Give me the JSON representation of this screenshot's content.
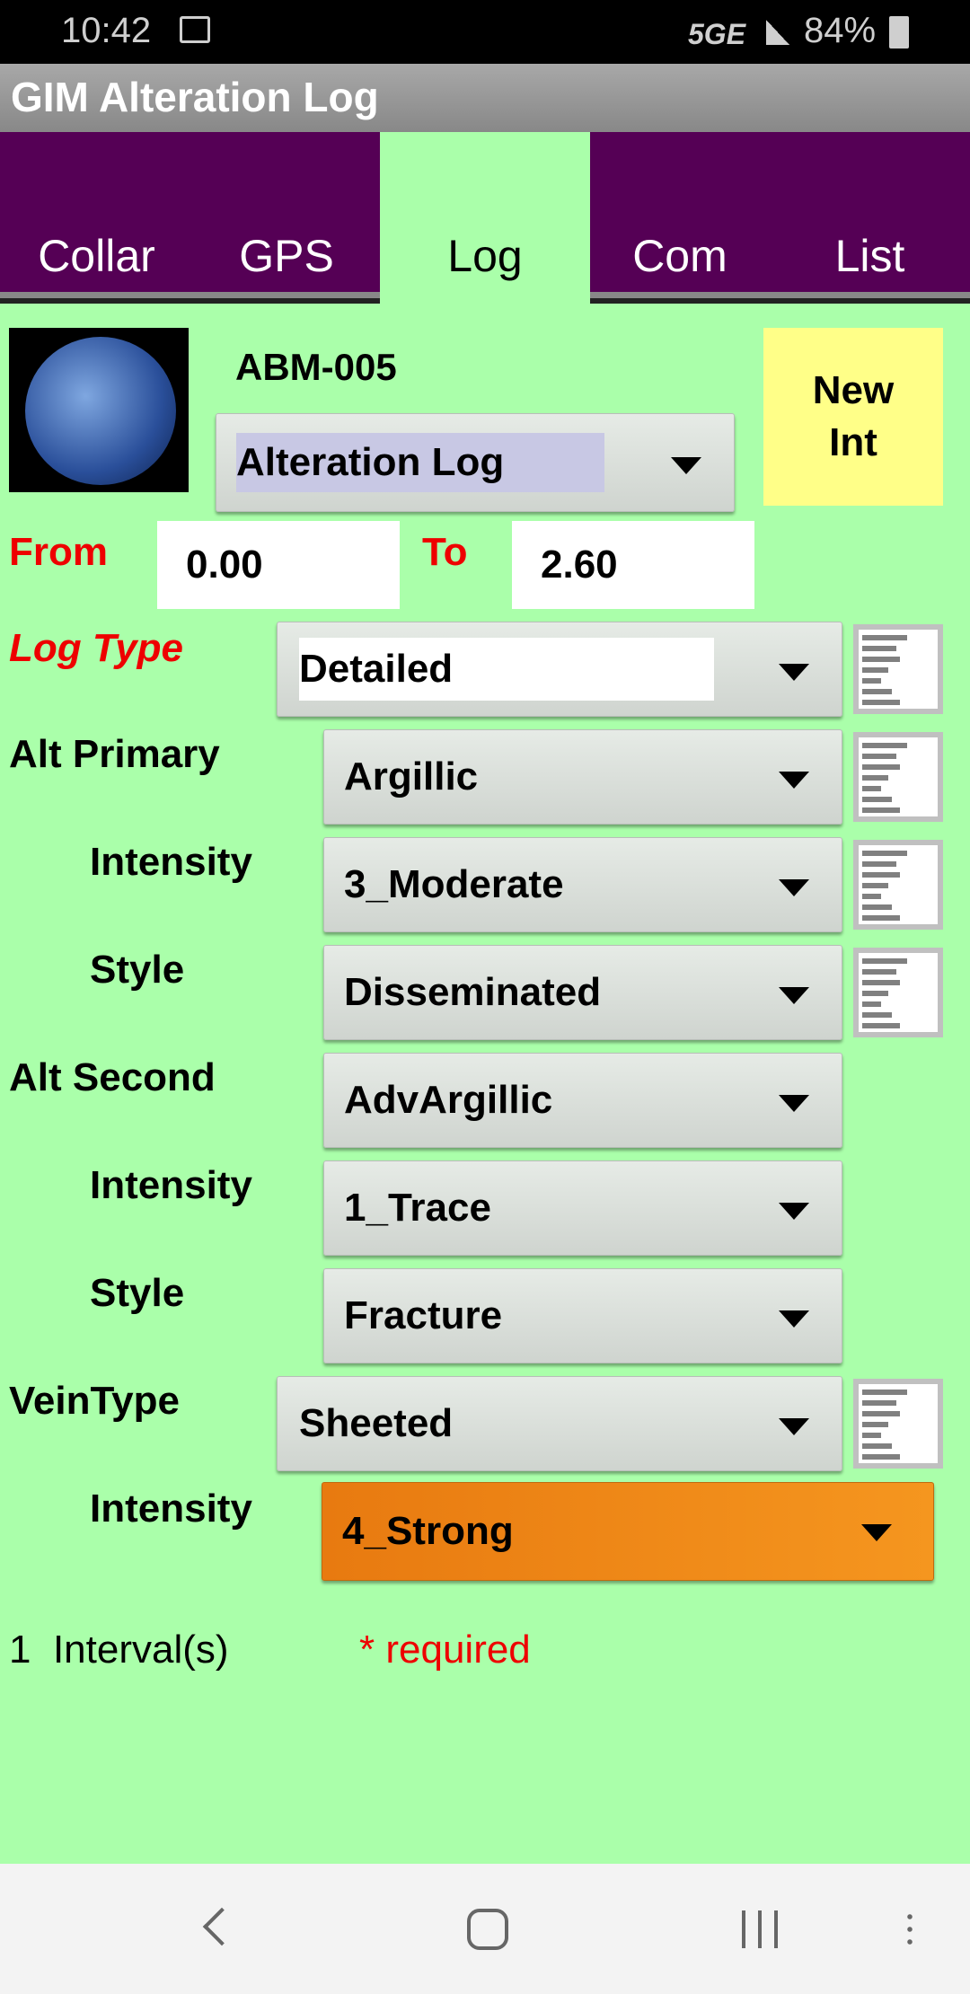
{
  "status": {
    "time": "10:42",
    "network": "5GE",
    "battery": "84%"
  },
  "app": {
    "title": "GIM Alteration Log"
  },
  "tabs": [
    {
      "label": "Collar"
    },
    {
      "label": "GPS"
    },
    {
      "label": "Log",
      "active": true
    },
    {
      "label": "Com"
    },
    {
      "label": "List"
    }
  ],
  "header": {
    "hole_id": "ABM-005",
    "log_select": "Alteration Log",
    "new_int_line1": "New",
    "new_int_line2": "Int"
  },
  "interval": {
    "from_label": "From",
    "from_value": "0.00",
    "to_label": "To",
    "to_value": "2.60"
  },
  "fields": [
    {
      "label": "Log Type",
      "value": "Detailed",
      "required": true,
      "has_note": true
    },
    {
      "label": "Alt Primary",
      "value": "Argillic",
      "has_note": true
    },
    {
      "label": "Intensity",
      "value": "3_Moderate",
      "has_note": true
    },
    {
      "label": "Style",
      "value": "Disseminated",
      "has_note": true
    },
    {
      "label": "Alt Second",
      "value": "AdvArgillic"
    },
    {
      "label": "Intensity",
      "value": "1_Trace"
    },
    {
      "label": "Style",
      "value": "Fracture"
    },
    {
      "label": "VeinType",
      "value": "Sheeted",
      "has_note": true
    },
    {
      "label": "Intensity",
      "value": "4_Strong",
      "highlight": "#f08a1a"
    }
  ],
  "footer": {
    "count": "1",
    "count_label": "Interval(s)",
    "required_note": "* required"
  },
  "colors": {
    "background": "#aaffaa",
    "tab_bar": "#550055",
    "new_int": "#ffff88",
    "required": "#ee0000"
  }
}
